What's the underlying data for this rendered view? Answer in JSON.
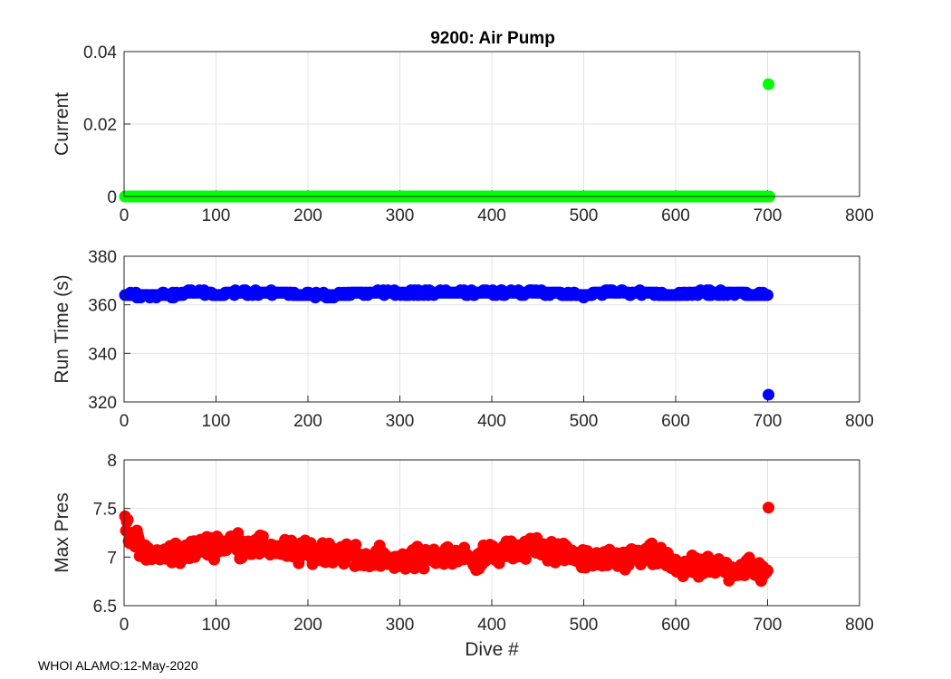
{
  "title": "9200: Air Pump",
  "footer": "WHOI ALAMO:12-May-2020",
  "xlabel": "Dive #",
  "chart_data": [
    {
      "type": "scatter",
      "ylabel": "Current",
      "xlim": [
        0,
        800
      ],
      "ylim": [
        0,
        0.04
      ],
      "xticks": [
        0,
        100,
        200,
        300,
        400,
        500,
        600,
        700,
        800
      ],
      "yticks": [
        0,
        0.02,
        0.04
      ],
      "yticklabels": [
        "0",
        "0.02",
        "0.04"
      ],
      "grid": true,
      "color": "#00ff00",
      "baseline": {
        "from": 1,
        "to": 702,
        "value": 0
      },
      "points": [
        [
          701,
          0.031
        ]
      ]
    },
    {
      "type": "scatter",
      "ylabel": "Run Time (s)",
      "xlim": [
        0,
        800
      ],
      "ylim": [
        320,
        380
      ],
      "xticks": [
        0,
        100,
        200,
        300,
        400,
        500,
        600,
        700,
        800
      ],
      "yticks": [
        320,
        340,
        360,
        380
      ],
      "yticklabels": [
        "320",
        "340",
        "360",
        "380"
      ],
      "grid": true,
      "color": "#0000ff",
      "band": [
        [
          1,
          364
        ],
        [
          20,
          364
        ],
        [
          40,
          364
        ],
        [
          60,
          364
        ],
        [
          70,
          365
        ],
        [
          90,
          365
        ],
        [
          100,
          364
        ],
        [
          120,
          365
        ],
        [
          140,
          365
        ],
        [
          160,
          365
        ],
        [
          180,
          365
        ],
        [
          185,
          364
        ],
        [
          200,
          364
        ],
        [
          220,
          364
        ],
        [
          240,
          364
        ],
        [
          250,
          365
        ],
        [
          280,
          365
        ],
        [
          300,
          365
        ],
        [
          350,
          365
        ],
        [
          400,
          365
        ],
        [
          450,
          365
        ],
        [
          500,
          364
        ],
        [
          520,
          365
        ],
        [
          560,
          365
        ],
        [
          600,
          364
        ],
        [
          630,
          365
        ],
        [
          660,
          365
        ],
        [
          690,
          364
        ],
        [
          700,
          364
        ]
      ],
      "points": [
        [
          701,
          323
        ]
      ]
    },
    {
      "type": "scatter",
      "ylabel": "Max Pres",
      "xlim": [
        0,
        800
      ],
      "ylim": [
        6.5,
        8
      ],
      "xticks": [
        0,
        100,
        200,
        300,
        400,
        500,
        600,
        700,
        800
      ],
      "yticks": [
        6.5,
        7,
        7.5,
        8
      ],
      "yticklabels": [
        "6.5",
        "7",
        "7.5",
        "8"
      ],
      "grid": true,
      "color": "#ff0000",
      "trend": [
        [
          1,
          7.42
        ],
        [
          5,
          7.27
        ],
        [
          10,
          7.2
        ],
        [
          15,
          7.12
        ],
        [
          20,
          7.03
        ],
        [
          40,
          7.02
        ],
        [
          60,
          7.05
        ],
        [
          80,
          7.1
        ],
        [
          100,
          7.12
        ],
        [
          120,
          7.14
        ],
        [
          140,
          7.12
        ],
        [
          160,
          7.1
        ],
        [
          180,
          7.08
        ],
        [
          200,
          7.03
        ],
        [
          220,
          7.07
        ],
        [
          240,
          7.05
        ],
        [
          260,
          6.99
        ],
        [
          280,
          6.98
        ],
        [
          300,
          6.97
        ],
        [
          320,
          6.98
        ],
        [
          340,
          7.0
        ],
        [
          360,
          7.02
        ],
        [
          380,
          6.98
        ],
        [
          400,
          7.02
        ],
        [
          420,
          7.06
        ],
        [
          440,
          7.1
        ],
        [
          460,
          7.08
        ],
        [
          480,
          7.03
        ],
        [
          500,
          6.98
        ],
        [
          520,
          6.95
        ],
        [
          540,
          6.97
        ],
        [
          560,
          7.0
        ],
        [
          580,
          7.0
        ],
        [
          600,
          6.92
        ],
        [
          620,
          6.88
        ],
        [
          640,
          6.9
        ],
        [
          660,
          6.88
        ],
        [
          680,
          6.88
        ],
        [
          700,
          6.87
        ]
      ],
      "points": [
        [
          1,
          7.42
        ],
        [
          701,
          7.51
        ]
      ]
    }
  ]
}
